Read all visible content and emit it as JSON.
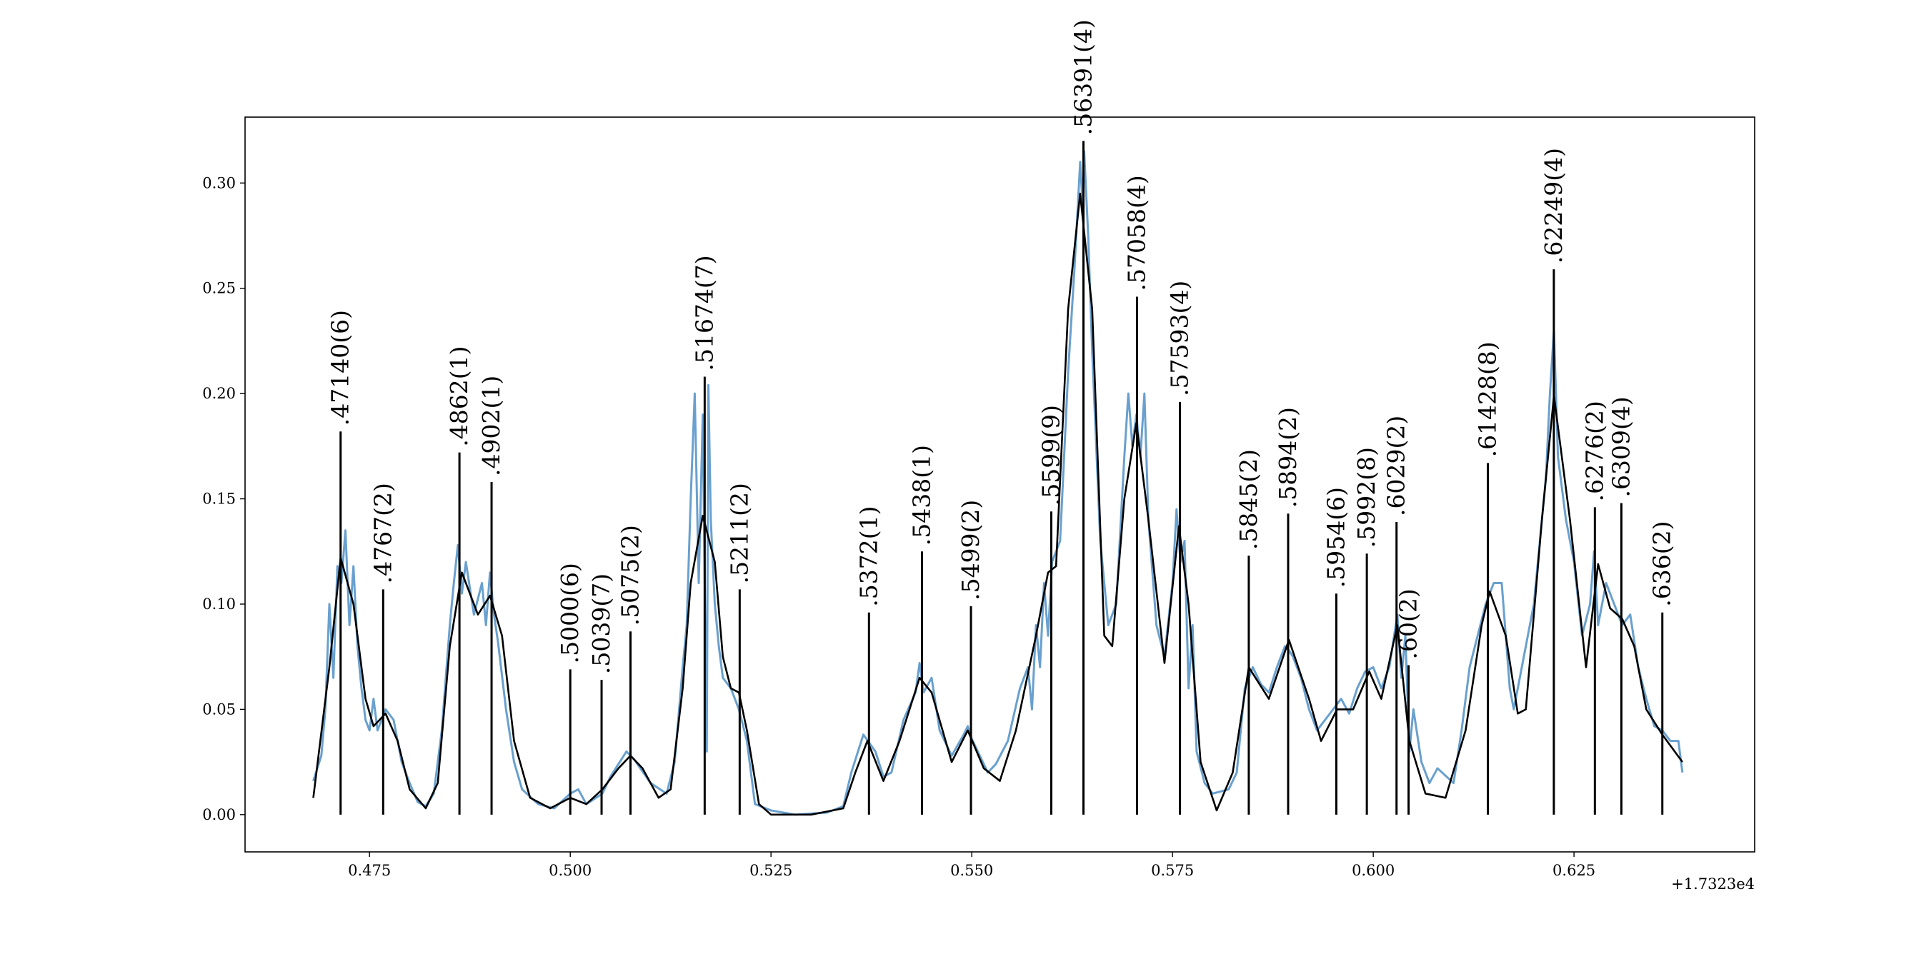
{
  "chart_data": {
    "type": "line",
    "offset_label": "+1.7323e4",
    "xlim": [
      0.4595,
      0.6475
    ],
    "ylim": [
      -0.0177,
      0.3313
    ],
    "xticks": [
      0.475,
      {
        "value": 0.5,
        "label": "0.500"
      },
      0.525,
      {
        "value": 0.55,
        "label": "0.550"
      },
      0.575,
      {
        "value": 0.6,
        "label": "0.600"
      },
      0.625
    ],
    "yticks": [
      {
        "value": 0,
        "label": "0.00"
      },
      0.05,
      {
        "value": 0.1,
        "label": "0.10"
      },
      0.15,
      {
        "value": 0.2,
        "label": "0.20"
      },
      0.25,
      {
        "value": 0.3,
        "label": "0.30"
      }
    ],
    "series": [
      {
        "color": "#4f8fc6",
        "x": [
          0.468,
          0.469,
          0.4695,
          0.47,
          0.4705,
          0.471,
          0.4715,
          0.472,
          0.4725,
          0.473,
          0.4735,
          0.474,
          0.4745,
          0.475,
          0.4755,
          0.476,
          0.477,
          0.478,
          0.479,
          0.48,
          0.481,
          0.482,
          0.483,
          0.484,
          0.485,
          0.4855,
          0.486,
          0.4865,
          0.487,
          0.488,
          0.489,
          0.4895,
          0.49,
          0.4905,
          0.491,
          0.492,
          0.493,
          0.494,
          0.496,
          0.498,
          0.5,
          0.501,
          0.502,
          0.504,
          0.505,
          0.507,
          0.508,
          0.51,
          0.512,
          0.513,
          0.514,
          0.5145,
          0.515,
          0.5155,
          0.516,
          0.5165,
          0.517,
          0.5172,
          0.5175,
          0.518,
          0.5185,
          0.519,
          0.52,
          0.521,
          0.522,
          0.523,
          0.525,
          0.528,
          0.532,
          0.534,
          0.535,
          0.5365,
          0.538,
          0.539,
          0.54,
          0.5415,
          0.543,
          0.5435,
          0.544,
          0.545,
          0.546,
          0.5475,
          0.549,
          0.5495,
          0.55,
          0.551,
          0.552,
          0.553,
          0.5545,
          0.556,
          0.557,
          0.5575,
          0.558,
          0.5585,
          0.559,
          0.5595,
          0.56,
          0.561,
          0.562,
          0.5628,
          0.5635,
          0.5638,
          0.564,
          0.5645,
          0.565,
          0.566,
          0.567,
          0.568,
          0.569,
          0.5695,
          0.57,
          0.5705,
          0.571,
          0.5715,
          0.572,
          0.573,
          0.574,
          0.575,
          0.5755,
          0.576,
          0.5765,
          0.577,
          0.5775,
          0.578,
          0.579,
          0.58,
          0.582,
          0.583,
          0.584,
          0.585,
          0.586,
          0.587,
          0.588,
          0.589,
          0.5895,
          0.59,
          0.591,
          0.592,
          0.593,
          0.594,
          0.595,
          0.596,
          0.597,
          0.598,
          0.599,
          0.6,
          0.601,
          0.602,
          0.603,
          0.6035,
          0.604,
          0.6045,
          0.605,
          0.606,
          0.607,
          0.608,
          0.61,
          0.611,
          0.612,
          0.613,
          0.614,
          0.615,
          0.616,
          0.617,
          0.6175,
          0.618,
          0.619,
          0.62,
          0.621,
          0.6215,
          0.622,
          0.6225,
          0.623,
          0.624,
          0.625,
          0.626,
          0.627,
          0.6275,
          0.628,
          0.629,
          0.63,
          0.631,
          0.632,
          0.633,
          0.634,
          0.635,
          0.636,
          0.637,
          0.638,
          0.6385
        ],
        "values": [
          0.016,
          0.028,
          0.05,
          0.1,
          0.065,
          0.118,
          0.11,
          0.135,
          0.09,
          0.118,
          0.08,
          0.06,
          0.045,
          0.04,
          0.055,
          0.04,
          0.05,
          0.045,
          0.025,
          0.015,
          0.006,
          0.004,
          0.01,
          0.04,
          0.09,
          0.11,
          0.128,
          0.105,
          0.12,
          0.095,
          0.11,
          0.09,
          0.115,
          0.095,
          0.082,
          0.05,
          0.025,
          0.012,
          0.005,
          0.003,
          0.01,
          0.012,
          0.005,
          0.01,
          0.018,
          0.03,
          0.026,
          0.015,
          0.01,
          0.025,
          0.07,
          0.09,
          0.15,
          0.2,
          0.11,
          0.19,
          0.03,
          0.204,
          0.14,
          0.1,
          0.08,
          0.065,
          0.06,
          0.05,
          0.035,
          0.005,
          0.002,
          0.0,
          0.001,
          0.004,
          0.02,
          0.038,
          0.03,
          0.018,
          0.02,
          0.045,
          0.058,
          0.072,
          0.058,
          0.065,
          0.04,
          0.028,
          0.038,
          0.042,
          0.036,
          0.028,
          0.02,
          0.024,
          0.035,
          0.06,
          0.07,
          0.05,
          0.09,
          0.07,
          0.11,
          0.085,
          0.12,
          0.13,
          0.21,
          0.26,
          0.31,
          0.29,
          0.315,
          0.275,
          0.22,
          0.13,
          0.09,
          0.1,
          0.17,
          0.2,
          0.175,
          0.19,
          0.17,
          0.2,
          0.14,
          0.09,
          0.075,
          0.11,
          0.145,
          0.12,
          0.13,
          0.06,
          0.09,
          0.03,
          0.015,
          0.01,
          0.012,
          0.02,
          0.06,
          0.07,
          0.062,
          0.058,
          0.07,
          0.08,
          0.078,
          0.075,
          0.065,
          0.05,
          0.04,
          0.045,
          0.05,
          0.055,
          0.048,
          0.06,
          0.068,
          0.07,
          0.06,
          0.07,
          0.095,
          0.065,
          0.085,
          0.03,
          0.05,
          0.025,
          0.015,
          0.022,
          0.015,
          0.04,
          0.07,
          0.085,
          0.1,
          0.11,
          0.11,
          0.06,
          0.05,
          0.06,
          0.08,
          0.1,
          0.14,
          0.16,
          0.2,
          0.23,
          0.17,
          0.14,
          0.12,
          0.085,
          0.1,
          0.125,
          0.09,
          0.11,
          0.1,
          0.09,
          0.095,
          0.07,
          0.055,
          0.042,
          0.04,
          0.035,
          0.035,
          0.02
        ]
      },
      {
        "color": "#000000",
        "x": [
          0.468,
          0.47,
          0.4714,
          0.473,
          0.4745,
          0.4755,
          0.477,
          0.4785,
          0.48,
          0.482,
          0.4835,
          0.485,
          0.4865,
          0.4885,
          0.49,
          0.4915,
          0.493,
          0.495,
          0.4975,
          0.5,
          0.502,
          0.504,
          0.506,
          0.5075,
          0.509,
          0.511,
          0.5125,
          0.514,
          0.515,
          0.5165,
          0.518,
          0.519,
          0.52,
          0.521,
          0.522,
          0.5235,
          0.525,
          0.53,
          0.534,
          0.5355,
          0.537,
          0.539,
          0.541,
          0.5435,
          0.545,
          0.5475,
          0.5495,
          0.5515,
          0.5535,
          0.5555,
          0.558,
          0.5595,
          0.5605,
          0.562,
          0.5635,
          0.565,
          0.5665,
          0.5675,
          0.569,
          0.5705,
          0.572,
          0.574,
          0.5758,
          0.577,
          0.5785,
          0.5805,
          0.5825,
          0.5845,
          0.587,
          0.5895,
          0.592,
          0.5935,
          0.5955,
          0.5975,
          0.5995,
          0.601,
          0.603,
          0.6045,
          0.6065,
          0.609,
          0.6115,
          0.6135,
          0.6145,
          0.6165,
          0.618,
          0.619,
          0.621,
          0.6225,
          0.6245,
          0.6265,
          0.628,
          0.6295,
          0.631,
          0.6325,
          0.634,
          0.636,
          0.6385
        ],
        "values": [
          0.008,
          0.07,
          0.122,
          0.1,
          0.055,
          0.042,
          0.048,
          0.035,
          0.012,
          0.003,
          0.015,
          0.08,
          0.115,
          0.095,
          0.104,
          0.085,
          0.035,
          0.008,
          0.003,
          0.008,
          0.005,
          0.012,
          0.022,
          0.028,
          0.022,
          0.008,
          0.012,
          0.06,
          0.11,
          0.142,
          0.12,
          0.075,
          0.06,
          0.058,
          0.04,
          0.005,
          0.0,
          0.0,
          0.003,
          0.02,
          0.035,
          0.016,
          0.035,
          0.065,
          0.058,
          0.025,
          0.04,
          0.022,
          0.016,
          0.04,
          0.085,
          0.115,
          0.118,
          0.24,
          0.295,
          0.24,
          0.085,
          0.08,
          0.15,
          0.186,
          0.14,
          0.072,
          0.137,
          0.1,
          0.025,
          0.002,
          0.02,
          0.07,
          0.055,
          0.083,
          0.055,
          0.035,
          0.05,
          0.05,
          0.068,
          0.055,
          0.09,
          0.035,
          0.01,
          0.008,
          0.04,
          0.09,
          0.106,
          0.085,
          0.048,
          0.05,
          0.14,
          0.199,
          0.14,
          0.07,
          0.119,
          0.098,
          0.093,
          0.08,
          0.05,
          0.038,
          0.025
        ]
      }
    ],
    "annotations": [
      {
        "x": 0.4714,
        "value": 0.182,
        "label": ".47140(6)"
      },
      {
        "x": 0.4767,
        "value": 0.107,
        "label": ".4767(2)"
      },
      {
        "x": 0.4862,
        "value": 0.172,
        "label": ".4862(1)"
      },
      {
        "x": 0.4902,
        "value": 0.158,
        "label": ".4902(1)"
      },
      {
        "x": 0.5,
        "value": 0.069,
        "label": ".5000(6)"
      },
      {
        "x": 0.5039,
        "value": 0.064,
        "label": ".5039(7)"
      },
      {
        "x": 0.5075,
        "value": 0.087,
        "label": ".5075(2)"
      },
      {
        "x": 0.51674,
        "value": 0.208,
        "label": ".51674(7)"
      },
      {
        "x": 0.5211,
        "value": 0.107,
        "label": ".5211(2)"
      },
      {
        "x": 0.5372,
        "value": 0.096,
        "label": ".5372(1)"
      },
      {
        "x": 0.5438,
        "value": 0.125,
        "label": ".5438(1)"
      },
      {
        "x": 0.5499,
        "value": 0.099,
        "label": ".5499(2)"
      },
      {
        "x": 0.5599,
        "value": 0.144,
        "label": ".5599(9)"
      },
      {
        "x": 0.56391,
        "value": 0.32,
        "label": ".56391(4)"
      },
      {
        "x": 0.57058,
        "value": 0.246,
        "label": ".57058(4)"
      },
      {
        "x": 0.57593,
        "value": 0.196,
        "label": ".57593(4)"
      },
      {
        "x": 0.5845,
        "value": 0.123,
        "label": ".5845(2)"
      },
      {
        "x": 0.5894,
        "value": 0.143,
        "label": ".5894(2)"
      },
      {
        "x": 0.5954,
        "value": 0.105,
        "label": ".5954(6)"
      },
      {
        "x": 0.5992,
        "value": 0.124,
        "label": ".5992(8)"
      },
      {
        "x": 0.6029,
        "value": 0.139,
        "label": ".6029(2)"
      },
      {
        "x": 0.6044,
        "value": 0.071,
        "label": ".60(2)"
      },
      {
        "x": 0.61428,
        "value": 0.167,
        "label": ".61428(8)"
      },
      {
        "x": 0.62249,
        "value": 0.259,
        "label": ".62249(4)"
      },
      {
        "x": 0.6276,
        "value": 0.146,
        "label": ".6276(2)"
      },
      {
        "x": 0.6309,
        "value": 0.148,
        "label": ".6309(4)"
      },
      {
        "x": 0.636,
        "value": 0.096,
        "label": ".636(2)"
      }
    ]
  }
}
